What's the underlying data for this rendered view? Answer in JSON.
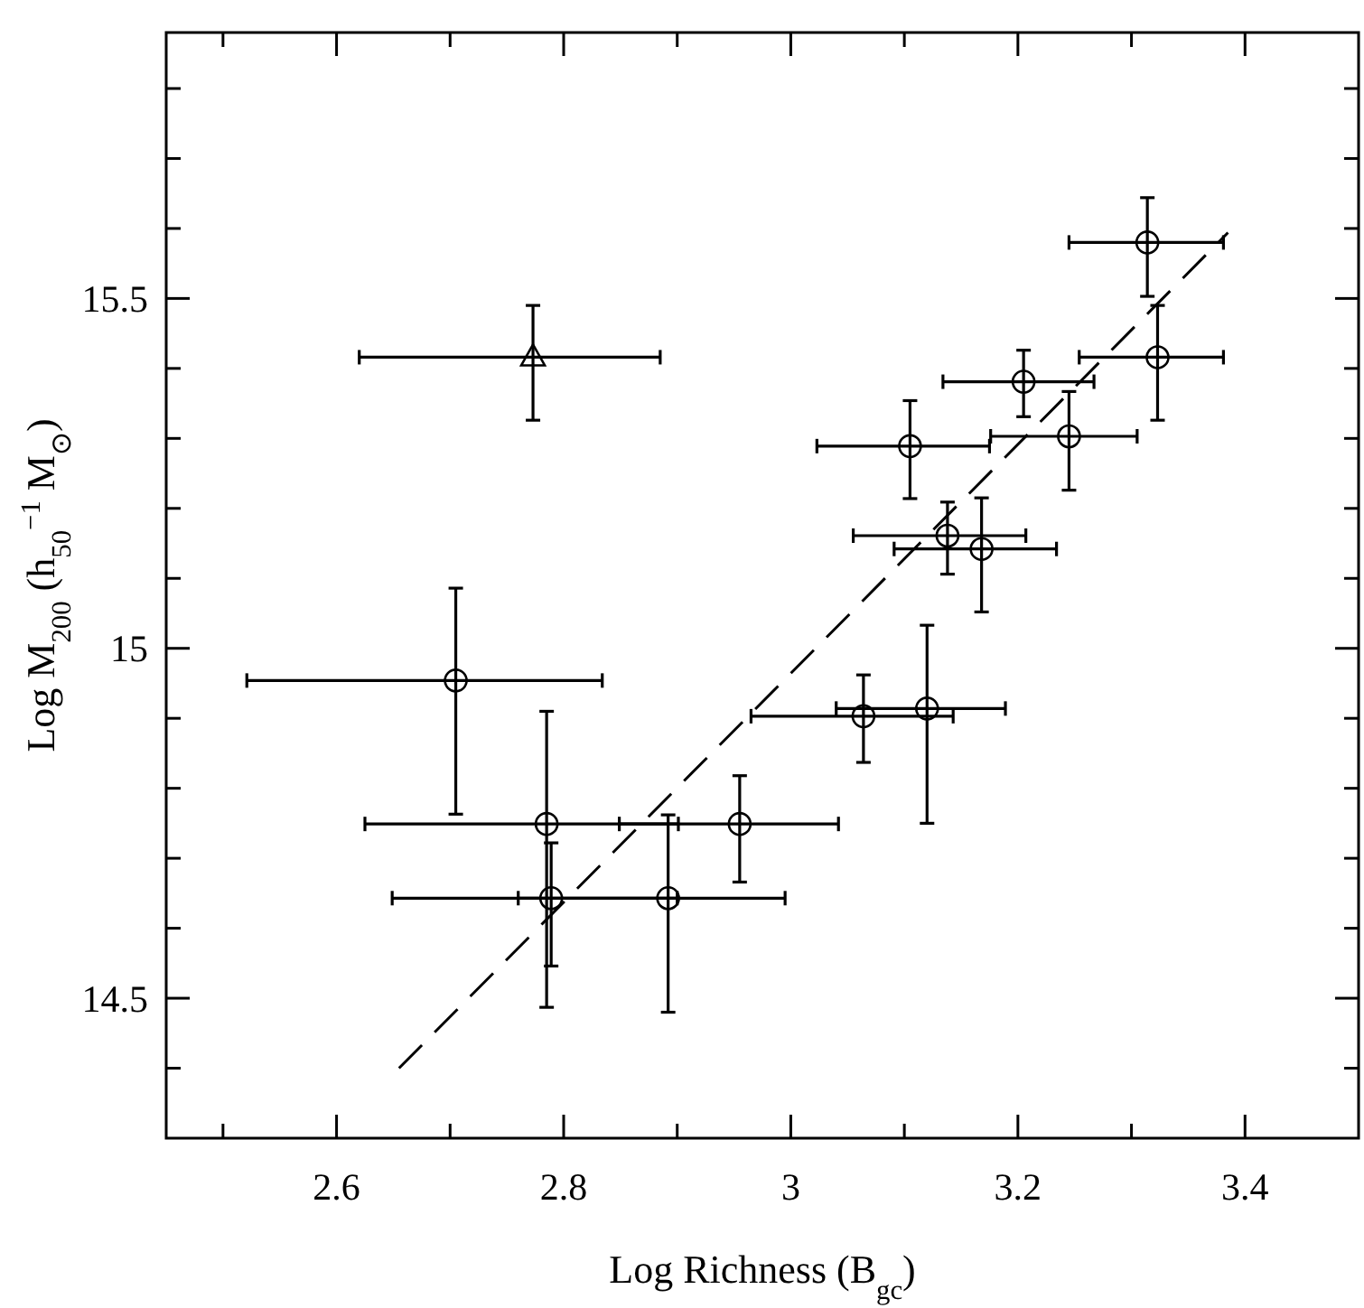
{
  "chart_data": {
    "type": "scatter",
    "xlabel": "Log Richness (B$_{gc}$)",
    "ylabel": "Log M$_{200}$ (h$_{50}$$^{−1}$ M$_{⊙}$)",
    "xlim": [
      2.45,
      3.5
    ],
    "ylim": [
      14.3,
      15.88
    ],
    "xticks": [
      {
        "value": 2.5,
        "label": null
      },
      2.6,
      {
        "value": 2.7,
        "label": null
      },
      2.8,
      {
        "value": 2.9,
        "label": null
      },
      3,
      {
        "value": 3.1,
        "label": null
      },
      3.2,
      {
        "value": 3.3,
        "label": null
      },
      3.4
    ],
    "yticks": [
      {
        "value": 14.4,
        "label": null
      },
      14.5,
      {
        "value": 14.6,
        "label": null
      },
      {
        "value": 14.7,
        "label": null
      },
      {
        "value": 14.8,
        "label": null
      },
      {
        "value": 14.9,
        "label": null
      },
      15,
      {
        "value": 15.1,
        "label": null
      },
      {
        "value": 15.2,
        "label": null
      },
      {
        "value": 15.3,
        "label": null
      },
      {
        "value": 15.4,
        "label": null
      },
      15.5,
      {
        "value": 15.6,
        "label": null
      },
      {
        "value": 15.7,
        "label": null
      },
      {
        "value": 15.8,
        "label": null
      }
    ],
    "series": [
      {
        "type": "scatter",
        "marker": "circle",
        "color": "#000000",
        "x": [
          3.314,
          3.323,
          3.205,
          3.245,
          3.105,
          3.138,
          3.168,
          3.064,
          3.12,
          2.705,
          2.785,
          2.955,
          2.789,
          2.892
        ],
        "values": [
          15.58,
          15.416,
          15.381,
          15.303,
          15.289,
          15.161,
          15.142,
          14.903,
          14.914,
          14.954,
          14.749,
          14.749,
          14.643,
          14.643
        ],
        "errors": [
          [
            15.503,
            15.644
          ],
          [
            15.326,
            15.49
          ],
          [
            15.331,
            15.426
          ],
          [
            15.226,
            15.367
          ],
          [
            15.214,
            15.354
          ],
          [
            15.106,
            15.209
          ],
          [
            15.052,
            15.215
          ],
          [
            14.837,
            14.962
          ],
          [
            14.75,
            15.033
          ],
          [
            14.763,
            15.086
          ],
          [
            14.487,
            14.91
          ],
          [
            14.666,
            14.818
          ],
          [
            14.546,
            14.722
          ],
          [
            14.48,
            14.762
          ]
        ],
        "xerrors": [
          [
            3.245,
            3.381
          ],
          [
            3.254,
            3.381
          ],
          [
            3.134,
            3.267
          ],
          [
            3.176,
            3.305
          ],
          [
            3.023,
            3.175
          ],
          [
            3.055,
            3.207
          ],
          [
            3.091,
            3.234
          ],
          [
            2.965,
            3.143
          ],
          [
            3.04,
            3.189
          ],
          [
            2.521,
            2.834
          ],
          [
            2.625,
            2.901
          ],
          [
            2.849,
            3.042
          ],
          [
            2.649,
            2.9
          ],
          [
            2.76,
            2.995
          ]
        ]
      },
      {
        "type": "scatter",
        "marker": "triangle",
        "color": "#000000",
        "x": [
          2.773
        ],
        "values": [
          15.416
        ],
        "errors": [
          [
            15.326,
            15.49
          ]
        ],
        "xerrors": [
          [
            2.62,
            2.885
          ]
        ]
      },
      {
        "type": "line",
        "line_style": "dashed",
        "color": "#000000",
        "x": [
          2.655,
          3.385
        ],
        "values": [
          14.4,
          15.594
        ]
      }
    ]
  }
}
